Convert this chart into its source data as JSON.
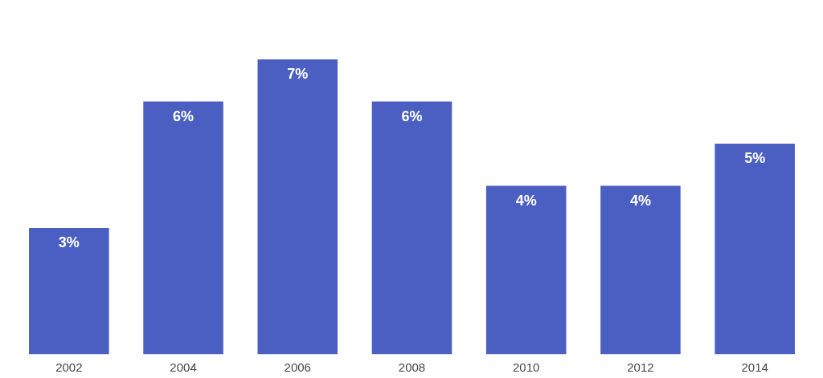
{
  "chart_data": {
    "type": "bar",
    "categories": [
      "2002",
      "2004",
      "2006",
      "2008",
      "2010",
      "2012",
      "2014"
    ],
    "values": [
      3,
      6,
      7,
      6,
      4,
      4,
      5
    ],
    "value_labels": [
      "3%",
      "6%",
      "7%",
      "6%",
      "4%",
      "4%",
      "5%"
    ],
    "color": "#4a5fc1"
  }
}
